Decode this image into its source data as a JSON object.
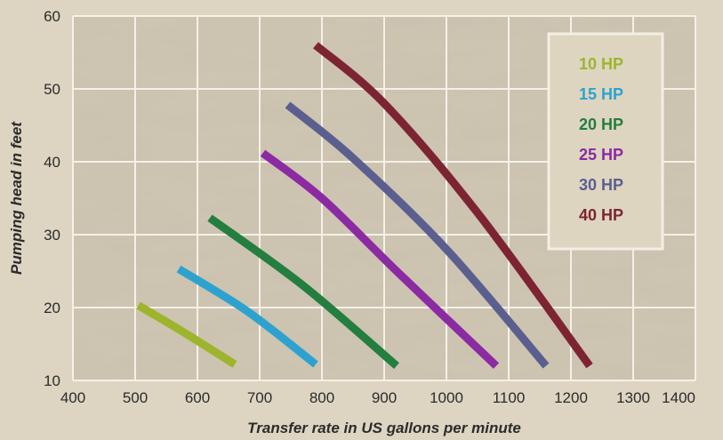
{
  "chart_data": {
    "type": "line",
    "title": "",
    "xlabel": "Transfer rate in US gallons per minute",
    "ylabel": "Pumping head in feet",
    "xlim": [
      400,
      1400
    ],
    "ylim": [
      10,
      60
    ],
    "x_ticks": [
      "400",
      "500",
      "600",
      "700",
      "800",
      "900",
      "1000",
      "1100",
      "1200",
      "1300",
      "1400"
    ],
    "y_ticks": [
      "10",
      "20",
      "30",
      "40",
      "50",
      "60"
    ],
    "grid": true,
    "legend_position": "top-right",
    "series": [
      {
        "name": "10 HP",
        "color": "#9cb52c",
        "points": [
          [
            505,
            20.3
          ],
          [
            580,
            16.5
          ],
          [
            660,
            12.2
          ]
        ]
      },
      {
        "name": "15 HP",
        "color": "#2ea2cf",
        "points": [
          [
            570,
            25.3
          ],
          [
            680,
            19.5
          ],
          [
            790,
            12.2
          ]
        ]
      },
      {
        "name": "20 HP",
        "color": "#237e3f",
        "points": [
          [
            620,
            32.3
          ],
          [
            770,
            23.0
          ],
          [
            920,
            12.0
          ]
        ]
      },
      {
        "name": "25 HP",
        "color": "#8b2aa3",
        "points": [
          [
            705,
            41.2
          ],
          [
            800,
            35.0
          ],
          [
            920,
            25.0
          ],
          [
            1080,
            12.0
          ]
        ]
      },
      {
        "name": "30 HP",
        "color": "#5a5f8f",
        "points": [
          [
            745,
            47.8
          ],
          [
            850,
            40.5
          ],
          [
            1000,
            28.0
          ],
          [
            1160,
            12.0
          ]
        ]
      },
      {
        "name": "40 HP",
        "color": "#7d2432",
        "points": [
          [
            790,
            56.0
          ],
          [
            900,
            48.0
          ],
          [
            1050,
            33.0
          ],
          [
            1230,
            12.0
          ]
        ]
      }
    ]
  }
}
